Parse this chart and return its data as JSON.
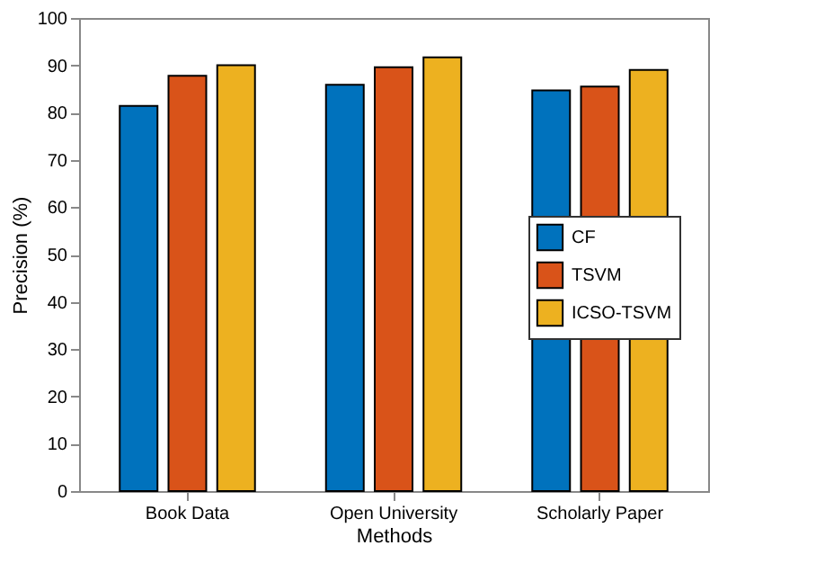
{
  "chart_data": {
    "type": "bar",
    "xlabel": "Methods",
    "ylabel": "Precision (%)",
    "categories": [
      "Book Data",
      "Open University",
      "Scholarly Paper"
    ],
    "series": [
      {
        "name": "CF",
        "color": "#0072bd",
        "values": [
          81.4,
          85.9,
          84.7
        ]
      },
      {
        "name": "TSVM",
        "color": "#d95319",
        "values": [
          87.8,
          89.6,
          85.5
        ]
      },
      {
        "name": "ICSO-TSVM",
        "color": "#edb120",
        "values": [
          90.0,
          91.7,
          89.0
        ]
      }
    ],
    "ylim": [
      0,
      100
    ],
    "yticks": [
      0,
      10,
      20,
      30,
      40,
      50,
      60,
      70,
      80,
      90,
      100
    ],
    "grid": false,
    "legend": "right"
  }
}
